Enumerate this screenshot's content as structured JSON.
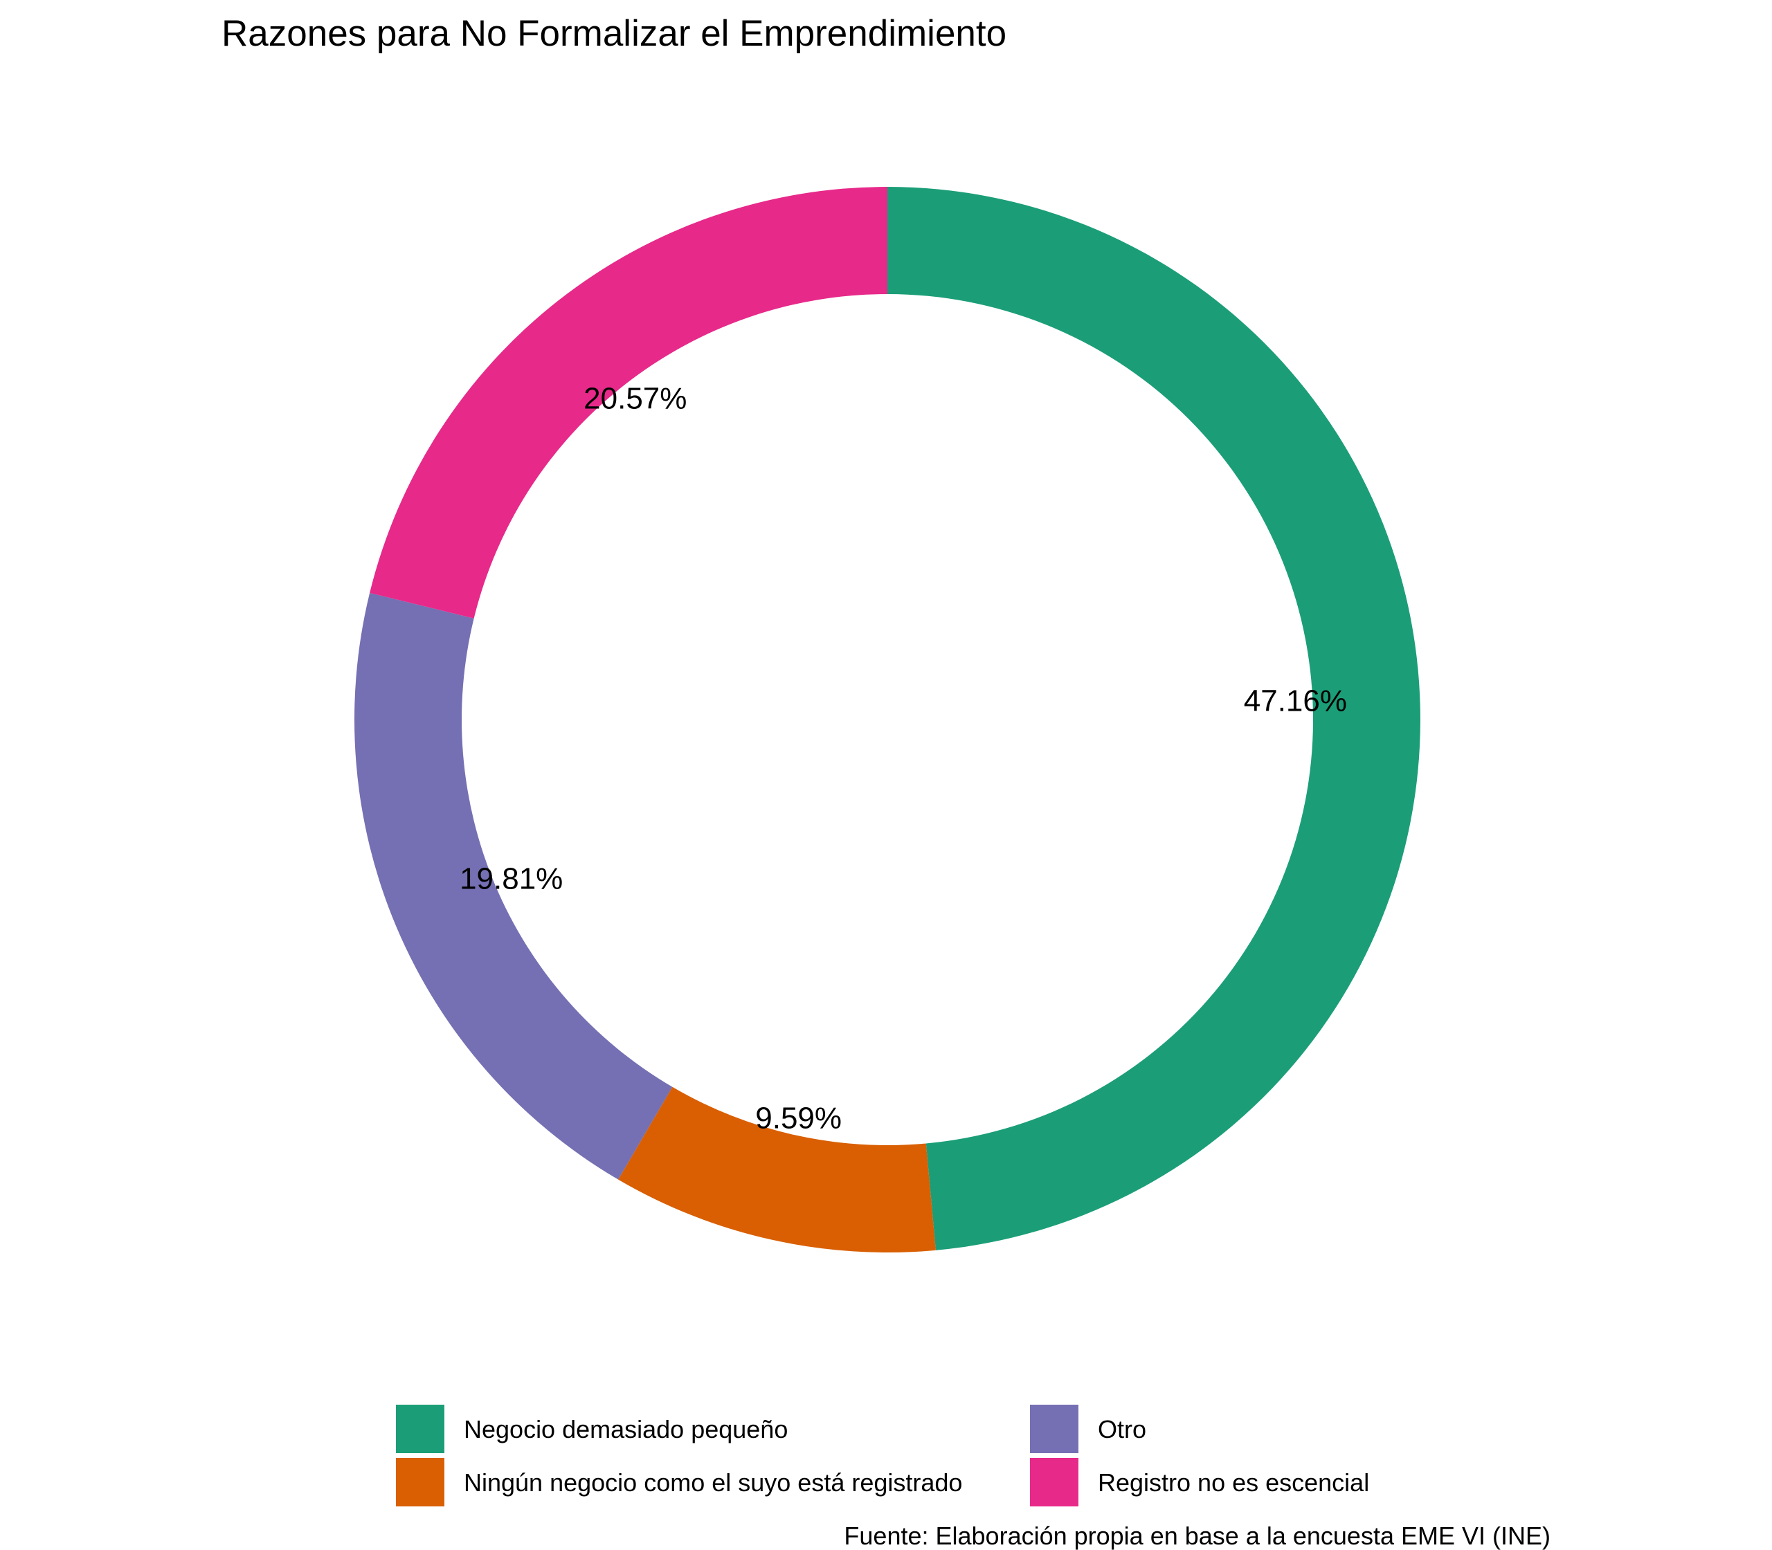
{
  "chart_data": {
    "type": "pie",
    "subtype": "donut",
    "title": "Razones para No Formalizar el Emprendimiento",
    "caption": "Fuente: Elaboración propia en base a la encuesta EME VI (INE)",
    "categories": [
      "Negocio demasiado pequeño",
      "Ningún negocio como el suyo está registrado",
      "Otro",
      "Registro no es escencial"
    ],
    "values": [
      47.16,
      9.59,
      19.81,
      20.57
    ],
    "labels": [
      "47.16%",
      "9.59%",
      "19.81%",
      "20.57%"
    ],
    "unit": "%",
    "colors": [
      "#1B9E77",
      "#D95F02",
      "#7570B3",
      "#E7298A"
    ],
    "start": "12 o'clock",
    "direction": "clockwise",
    "legend_position": "bottom",
    "legend_columns": 2
  }
}
